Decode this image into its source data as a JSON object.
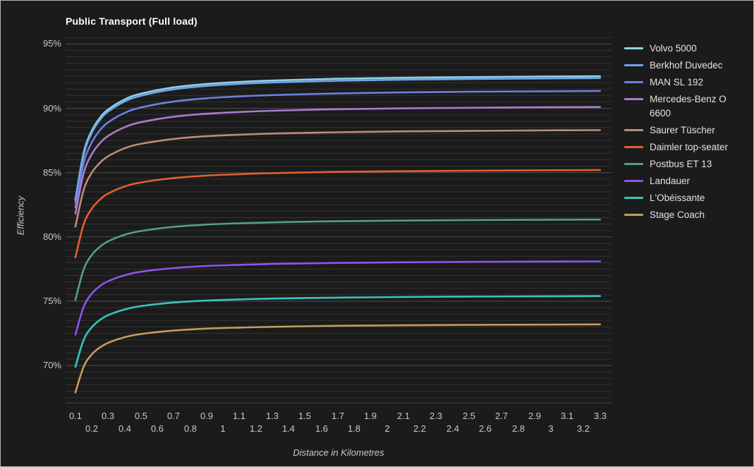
{
  "window": {
    "background": "#1b1b1b",
    "border_color": "#b6b6b6",
    "text_color": "#cacaca",
    "grid_minor_color": "#333333",
    "grid_major_color": "#4f4f4f",
    "axis_line_color": "#444444"
  },
  "chart_data": {
    "type": "line",
    "title": "Public Transport (Full load)",
    "xlabel": "Distance in Kilometres",
    "ylabel": "Efficiency",
    "y_unit": "%",
    "x_unit": "km",
    "xlim": [
      0.04,
      3.37
    ],
    "ylim": [
      67.1,
      95.9
    ],
    "grid": "horizontal only, minor lines every 0.5%, major lines every 5%",
    "legend_position": "right",
    "x_ticks": [
      "0.1",
      "0.2",
      "0.3",
      "0.4",
      "0.5",
      "0.6",
      "0.7",
      "0.8",
      "0.9",
      "1",
      "1.1",
      "1.2",
      "1.3",
      "1.4",
      "1.5",
      "1.6",
      "1.7",
      "1.8",
      "1.9",
      "2",
      "2.1",
      "2.2",
      "2.3",
      "2.4",
      "2.5",
      "2.6",
      "2.7",
      "2.8",
      "2.9",
      "3",
      "3.1",
      "3.2",
      "3.3"
    ],
    "y_ticks": [
      {
        "label": "95%",
        "value": 95
      },
      {
        "label": "90%",
        "value": 90
      },
      {
        "label": "85%",
        "value": 85
      },
      {
        "label": "80%",
        "value": 80
      },
      {
        "label": "75%",
        "value": 75
      },
      {
        "label": "70%",
        "value": 70
      }
    ],
    "x": [
      0.1,
      0.15,
      0.2,
      0.25,
      0.3,
      0.4,
      0.5,
      0.7,
      0.9,
      1.1,
      1.3,
      1.7,
      2.1,
      2.5,
      2.9,
      3.3
    ],
    "series": [
      {
        "name": "Volvo 5000",
        "color": "#8dd2e8",
        "values": [
          82.9,
          86.54,
          88.27,
          89.27,
          89.91,
          90.69,
          91.14,
          91.63,
          91.89,
          92.05,
          92.16,
          92.3,
          92.38,
          92.43,
          92.47,
          92.5
        ]
      },
      {
        "name": "Berkhof Duvedec",
        "color": "#6ea5e8",
        "values": [
          82.7,
          86.36,
          88.1,
          89.1,
          89.75,
          90.53,
          90.98,
          91.48,
          91.74,
          91.9,
          92.01,
          92.15,
          92.23,
          92.28,
          92.32,
          92.35
        ]
      },
      {
        "name": "MAN SL 192",
        "color": "#6d7fe0",
        "values": [
          82.3,
          85.73,
          87.36,
          88.3,
          88.91,
          89.64,
          90.07,
          90.53,
          90.78,
          90.93,
          91.03,
          91.16,
          91.24,
          91.29,
          91.32,
          91.35
        ]
      },
      {
        "name": "Mercedes-Benz O 6600",
        "color": "#aa7ad0",
        "values": [
          81.8,
          84.95,
          86.44,
          87.3,
          87.86,
          88.53,
          88.92,
          89.35,
          89.58,
          89.71,
          89.81,
          89.93,
          90.0,
          90.04,
          90.08,
          90.1
        ]
      },
      {
        "name": "Saurer Tüscher",
        "color": "#bd8b7a",
        "values": [
          80.8,
          83.65,
          85.0,
          85.77,
          86.28,
          86.89,
          87.24,
          87.62,
          87.83,
          87.95,
          88.04,
          88.14,
          88.21,
          88.24,
          88.28,
          88.3
        ]
      },
      {
        "name": "Daimler top-seater",
        "color": "#e0602f",
        "values": [
          78.4,
          80.98,
          82.2,
          82.91,
          83.37,
          83.92,
          84.24,
          84.58,
          84.77,
          84.88,
          84.96,
          85.06,
          85.11,
          85.15,
          85.18,
          85.2
        ]
      },
      {
        "name": "Postbus ET 13",
        "color": "#55a17d",
        "values": [
          75.1,
          77.47,
          78.6,
          79.24,
          79.66,
          80.17,
          80.46,
          80.78,
          80.96,
          81.06,
          81.13,
          81.22,
          81.27,
          81.31,
          81.33,
          81.35
        ]
      },
      {
        "name": "Landauer",
        "color": "#8c55ec",
        "values": [
          72.4,
          74.56,
          75.59,
          76.18,
          76.56,
          77.02,
          77.29,
          77.58,
          77.74,
          77.83,
          77.9,
          77.98,
          78.03,
          78.06,
          78.08,
          78.1
        ]
      },
      {
        "name": "L'Obéissante",
        "color": "#38c4bd",
        "values": [
          69.9,
          71.99,
          72.98,
          73.55,
          73.92,
          74.36,
          74.62,
          74.9,
          75.05,
          75.14,
          75.21,
          75.28,
          75.33,
          75.36,
          75.38,
          75.4
        ]
      },
      {
        "name": "Stage Coach",
        "color": "#c99a60",
        "values": [
          67.9,
          69.91,
          70.87,
          71.41,
          71.77,
          72.2,
          72.45,
          72.72,
          72.87,
          72.95,
          73.01,
          73.09,
          73.13,
          73.16,
          73.18,
          73.2
        ]
      }
    ]
  }
}
